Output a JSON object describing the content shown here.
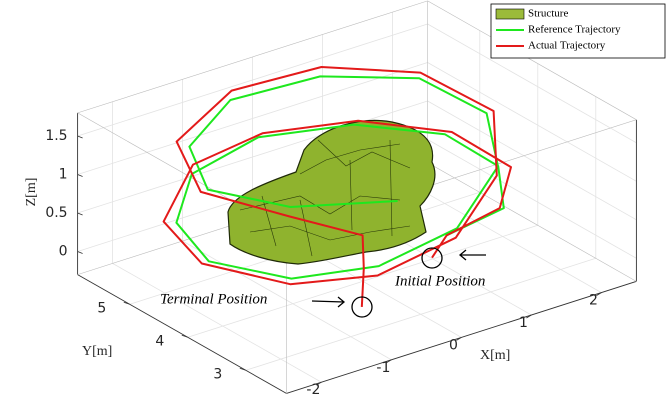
{
  "chart_data": {
    "type": "line3d",
    "xlabel": "X[m]",
    "ylabel": "Y[m]",
    "zlabel": "Z[m]",
    "xlim": [
      -2.5,
      2.5
    ],
    "ylim": [
      2.3,
      5.9
    ],
    "zlim": [
      -0.3,
      1.8
    ],
    "xticks": [
      -2,
      -1,
      0,
      1,
      2
    ],
    "yticks": [
      3,
      4,
      5
    ],
    "zticks": [
      0,
      0.5,
      1,
      1.5
    ],
    "grid": true,
    "legend": "upper right",
    "annotations": [
      "Initial Position",
      "Terminal Position"
    ],
    "series": [
      {
        "name": "Structure",
        "color": "#9bbb3a"
      },
      {
        "name": "Reference Trajectory",
        "color": "#1ee81e",
        "x": [
          0.7,
          1.6,
          2.1,
          2.0,
          1.2,
          0,
          -1.2,
          -2.0,
          -2.2,
          -1.6,
          -0.6,
          0.6,
          1.6,
          2.1,
          1.8,
          0.8,
          -0.4,
          -1.4,
          -1.8,
          -1.2,
          0
        ],
        "y": [
          3.4,
          3.5,
          4.2,
          5.0,
          5.6,
          5.8,
          5.5,
          4.8,
          4.0,
          3.3,
          3.0,
          3.1,
          3.6,
          4.4,
          5.2,
          5.7,
          5.8,
          5.3,
          4.5,
          3.8,
          3.4
        ],
        "z": [
          0.35,
          0.4,
          0.5,
          0.6,
          0.7,
          0.8,
          0.8,
          0.7,
          0.6,
          0.5,
          0.5,
          0.6,
          0.9,
          1.1,
          1.3,
          1.4,
          1.4,
          1.3,
          1.2,
          1.1,
          1.0
        ]
      },
      {
        "name": "Actual Trajectory",
        "color": "#e31a1a",
        "x": [
          0.64,
          0.7,
          1.5,
          2.2,
          2.1,
          1.3,
          0.1,
          -1.1,
          -2.1,
          -2.3,
          -1.7,
          -0.7,
          0.5,
          1.5,
          2.2,
          1.9,
          0.9,
          -0.3,
          -1.5,
          -1.9,
          -1.3,
          -0.5,
          -0.4,
          -0.42
        ],
        "y": [
          3.58,
          3.4,
          3.45,
          4.1,
          5.0,
          5.65,
          5.85,
          5.6,
          4.9,
          4.0,
          3.2,
          2.9,
          3.0,
          3.5,
          4.4,
          5.3,
          5.8,
          5.9,
          5.4,
          4.5,
          3.7,
          3.4,
          3.5,
          3.51
        ],
        "z": [
          0.0,
          0.35,
          0.45,
          0.5,
          0.6,
          0.7,
          0.8,
          0.85,
          0.7,
          0.6,
          0.5,
          0.45,
          0.55,
          0.85,
          1.1,
          1.3,
          1.45,
          1.45,
          1.35,
          1.2,
          1.05,
          0.7,
          0.2,
          -0.3
        ]
      }
    ]
  }
}
